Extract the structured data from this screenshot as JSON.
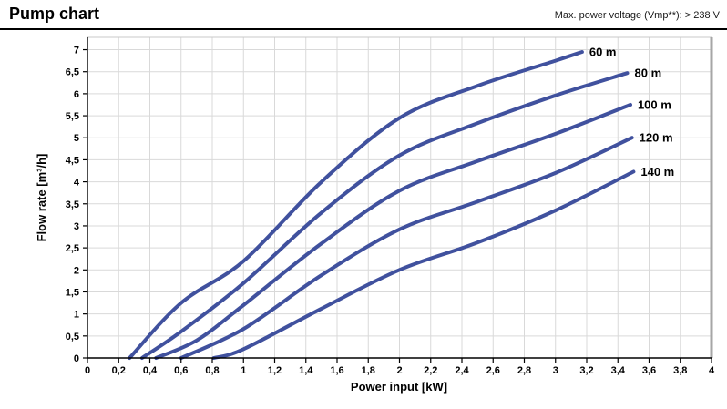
{
  "header": {
    "title": "Pump chart",
    "note": "Max. power voltage (Vmp**): > 238 V"
  },
  "chart_data": {
    "type": "line",
    "title": "Pump chart",
    "xlabel": "Power input [kW]",
    "ylabel": "Flow rate [m³/h]",
    "xlim": [
      0,
      4
    ],
    "ylim": [
      0,
      7.28
    ],
    "grid": true,
    "legend": "labels-at-line-ends",
    "decimal_separator": ",",
    "x_ticks": [
      "0",
      "0,2",
      "0,4",
      "0,6",
      "0,8",
      "1",
      "1,2",
      "1,4",
      "1,6",
      "1,8",
      "2",
      "2,2",
      "2,4",
      "2,6",
      "2,8",
      "3",
      "3,2",
      "3,4",
      "3,6",
      "3,8",
      "4"
    ],
    "y_ticks": [
      "0",
      "0,5",
      "1",
      "1,5",
      "2",
      "2,5",
      "3",
      "3,5",
      "4",
      "4,5",
      "5",
      "5,5",
      "6",
      "6,5",
      "7"
    ],
    "series": [
      {
        "name": "60 m",
        "points": [
          [
            0.27,
            0
          ],
          [
            0.6,
            1.25
          ],
          [
            1.0,
            2.2
          ],
          [
            1.5,
            4.0
          ],
          [
            2.0,
            5.45
          ],
          [
            2.5,
            6.18
          ],
          [
            3.0,
            6.75
          ],
          [
            3.17,
            6.95
          ]
        ]
      },
      {
        "name": "80 m",
        "points": [
          [
            0.35,
            0
          ],
          [
            0.6,
            0.6
          ],
          [
            1.0,
            1.7
          ],
          [
            1.5,
            3.3
          ],
          [
            2.0,
            4.6
          ],
          [
            2.5,
            5.33
          ],
          [
            3.0,
            5.96
          ],
          [
            3.46,
            6.47
          ]
        ]
      },
      {
        "name": "100 m",
        "points": [
          [
            0.44,
            0
          ],
          [
            0.7,
            0.4
          ],
          [
            1.0,
            1.2
          ],
          [
            1.5,
            2.6
          ],
          [
            2.0,
            3.8
          ],
          [
            2.5,
            4.47
          ],
          [
            3.0,
            5.09
          ],
          [
            3.48,
            5.75
          ]
        ]
      },
      {
        "name": "120 m",
        "points": [
          [
            0.6,
            0
          ],
          [
            1.0,
            0.66
          ],
          [
            1.5,
            1.88
          ],
          [
            2.0,
            2.92
          ],
          [
            2.5,
            3.55
          ],
          [
            3.0,
            4.2
          ],
          [
            3.49,
            5.0
          ]
        ]
      },
      {
        "name": "140 m",
        "points": [
          [
            0.81,
            0
          ],
          [
            1.0,
            0.2
          ],
          [
            1.5,
            1.12
          ],
          [
            2.0,
            2.0
          ],
          [
            2.5,
            2.62
          ],
          [
            3.0,
            3.35
          ],
          [
            3.5,
            4.23
          ]
        ]
      }
    ],
    "colors": {
      "line": "#40519e",
      "grid": "#d9d9d9",
      "axis": "#000000",
      "plot_border_right": "#a6a6a6",
      "plot_border_top": "#c8c8c8"
    }
  }
}
